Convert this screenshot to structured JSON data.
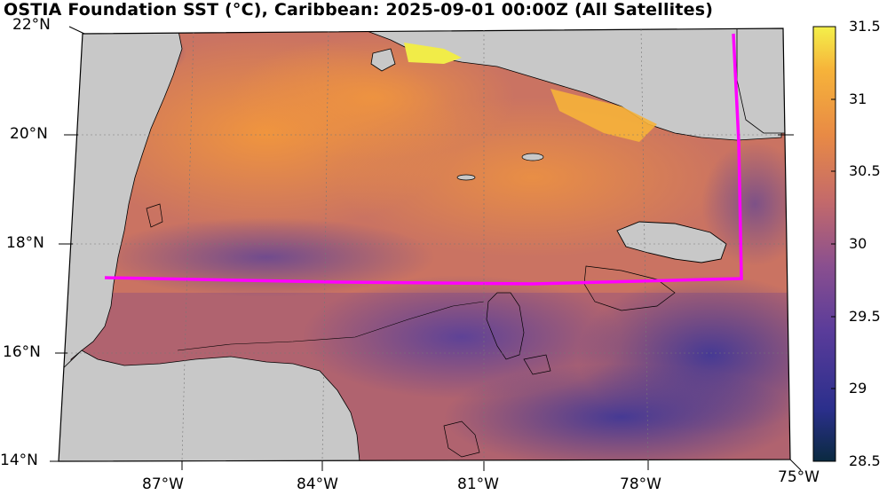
{
  "title": "OSTIA Foundation SST (°C), Caribbean: 2025-09-01 00:00Z (All Satellites)",
  "colors": {
    "land": "#c8c8c8",
    "box_line": "#ff00ff",
    "coast": "#000000"
  },
  "lat_labels": [
    "22°N",
    "20°N",
    "18°N",
    "16°N",
    "14°N"
  ],
  "lon_labels": [
    "87°W",
    "84°W",
    "81°W",
    "78°W",
    "75°W"
  ],
  "colorbar": {
    "ticks": [
      "31.5",
      "31",
      "30.5",
      "30",
      "29.5",
      "29",
      "28.5"
    ],
    "min": 28.5,
    "max": 31.5,
    "colormap": [
      "#0a2a40",
      "#2b2f8c",
      "#5a3c9a",
      "#8a4f8f",
      "#c46a6a",
      "#e88a45",
      "#f6b33a",
      "#f4f04a"
    ]
  }
}
